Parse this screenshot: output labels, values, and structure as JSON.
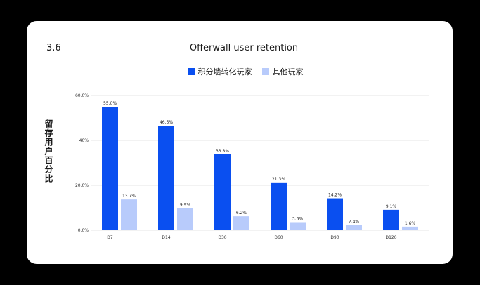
{
  "figure_number": "3.6",
  "colors": {
    "page_bg": "#000000",
    "card_bg": "#ffffff",
    "gridline": "#e6e6e6"
  },
  "chart_data": {
    "type": "bar",
    "title": "Offerwall user retention",
    "ylabel": "留存用户百分比",
    "xlabel": "",
    "categories": [
      "D7",
      "D14",
      "D30",
      "D60",
      "D90",
      "D120"
    ],
    "series": [
      {
        "name": "积分墙转化玩家",
        "color": "#0a4ff0",
        "values": [
          55.0,
          46.5,
          33.8,
          21.3,
          14.2,
          9.1
        ],
        "labels": [
          "55.0%",
          "46.5%",
          "33.8%",
          "21.3%",
          "14.2%",
          "9.1%"
        ]
      },
      {
        "name": "其他玩家",
        "color": "#b8cbfb",
        "values": [
          13.7,
          9.9,
          6.2,
          3.6,
          2.4,
          1.6
        ],
        "labels": [
          "13.7%",
          "9.9%",
          "6.2%",
          "3.6%",
          "2.4%",
          "1.6%"
        ]
      }
    ],
    "ylim": [
      0,
      60
    ],
    "yticks": [
      0,
      20,
      40,
      60
    ],
    "ytick_labels": [
      "0.0%",
      "20.0%",
      "40%",
      "60.0%"
    ],
    "grid": true,
    "legend_position": "top-center"
  }
}
